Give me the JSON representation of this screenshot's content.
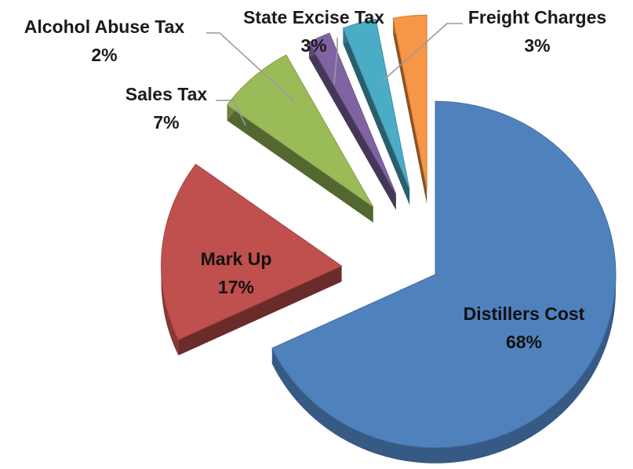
{
  "chart_data": {
    "type": "pie",
    "style": "exploded-3d",
    "slices": [
      {
        "label": "Distillers Cost",
        "value": 68,
        "value_label": "68%",
        "color": "#4F81BD",
        "label_position": "inside"
      },
      {
        "label": "Mark Up",
        "value": 17,
        "value_label": "17%",
        "color": "#C0504D",
        "label_position": "inside"
      },
      {
        "label": "Sales Tax",
        "value": 7,
        "value_label": "7%",
        "color": "#9BBB59",
        "label_position": "outside"
      },
      {
        "label": "Alcohol Abuse Tax",
        "value": 2,
        "value_label": "2%",
        "color": "#8064A2",
        "label_position": "outside"
      },
      {
        "label": "State Excise Tax",
        "value": 3,
        "value_label": "3%",
        "color": "#4BACC6",
        "label_position": "outside"
      },
      {
        "label": "Freight Charges",
        "value": 3,
        "value_label": "3%",
        "color": "#F79646",
        "label_position": "outside"
      }
    ]
  }
}
